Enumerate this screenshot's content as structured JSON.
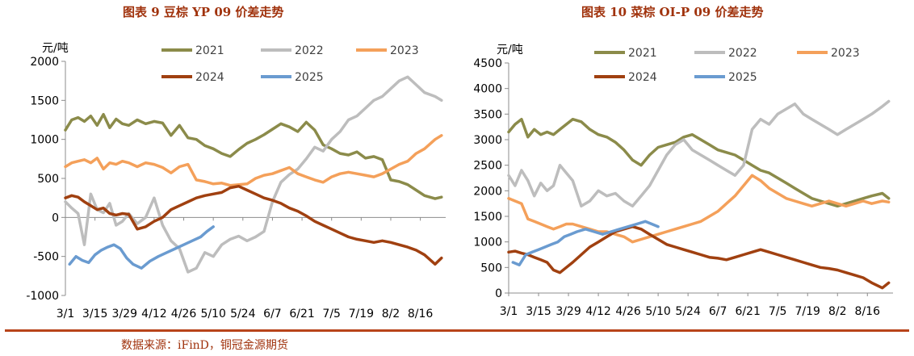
{
  "chart_data": [
    {
      "type": "line",
      "title": "图表 9 豆棕 YP 09 价差走势",
      "ylabel": "元/吨",
      "xlabel": "",
      "ylim": [
        -1000,
        2000
      ],
      "yticks": [
        -1000,
        -500,
        0,
        500,
        1000,
        1500,
        2000
      ],
      "ytick_labels": [
        "-1000",
        "-500",
        "0",
        "500",
        "1000",
        "1500",
        "2000"
      ],
      "xlim": [
        0,
        180
      ],
      "x_ticks": [
        0,
        14,
        28,
        42,
        56,
        70,
        84,
        98,
        112,
        126,
        140,
        154,
        168
      ],
      "x_tick_labels": [
        "3/1",
        "3/15",
        "3/29",
        "4/12",
        "4/26",
        "5/10",
        "5/24",
        "6/7",
        "6/21",
        "7/5",
        "7/19",
        "8/2",
        "8/16"
      ],
      "grid": false,
      "series": [
        {
          "name": "2021",
          "color": "#8b8b4a",
          "x": [
            0,
            3,
            6,
            9,
            12,
            15,
            18,
            21,
            24,
            27,
            30,
            34,
            38,
            42,
            46,
            50,
            54,
            58,
            62,
            66,
            70,
            74,
            78,
            82,
            86,
            90,
            94,
            98,
            102,
            106,
            110,
            114,
            118,
            122,
            126,
            130,
            134,
            138,
            142,
            146,
            150,
            154,
            158,
            162,
            166,
            170,
            175,
            178
          ],
          "values": [
            1120,
            1250,
            1280,
            1230,
            1300,
            1180,
            1320,
            1150,
            1260,
            1200,
            1180,
            1250,
            1200,
            1230,
            1210,
            1050,
            1180,
            1020,
            1000,
            920,
            880,
            820,
            780,
            870,
            950,
            1000,
            1060,
            1130,
            1200,
            1160,
            1100,
            1220,
            1120,
            930,
            880,
            820,
            800,
            840,
            760,
            780,
            740,
            480,
            460,
            420,
            350,
            280,
            240,
            260
          ]
        },
        {
          "name": "2022",
          "color": "#bdbdbd",
          "x": [
            0,
            3,
            6,
            9,
            12,
            15,
            18,
            21,
            24,
            27,
            30,
            34,
            38,
            42,
            46,
            50,
            54,
            58,
            62,
            66,
            70,
            74,
            78,
            82,
            86,
            90,
            94,
            98,
            102,
            106,
            110,
            114,
            118,
            122,
            126,
            130,
            134,
            138,
            142,
            146,
            150,
            154,
            158,
            162,
            166,
            170,
            175,
            178
          ],
          "values": [
            200,
            120,
            50,
            -350,
            300,
            100,
            60,
            180,
            -100,
            -50,
            50,
            -80,
            0,
            250,
            -100,
            -300,
            -400,
            -700,
            -650,
            -450,
            -500,
            -350,
            -280,
            -240,
            -300,
            -250,
            -180,
            200,
            450,
            550,
            620,
            750,
            900,
            850,
            1000,
            1100,
            1250,
            1300,
            1400,
            1500,
            1550,
            1650,
            1750,
            1800,
            1700,
            1600,
            1550,
            1500
          ]
        },
        {
          "name": "2023",
          "color": "#f4a05a",
          "x": [
            0,
            3,
            6,
            9,
            12,
            15,
            18,
            21,
            24,
            27,
            30,
            34,
            38,
            42,
            46,
            50,
            54,
            58,
            62,
            66,
            70,
            74,
            78,
            82,
            86,
            90,
            94,
            98,
            102,
            106,
            110,
            114,
            118,
            122,
            126,
            130,
            134,
            138,
            142,
            146,
            150,
            154,
            158,
            162,
            166,
            170,
            175,
            178
          ],
          "values": [
            650,
            700,
            720,
            740,
            700,
            760,
            620,
            700,
            680,
            720,
            700,
            650,
            700,
            680,
            640,
            570,
            650,
            680,
            480,
            460,
            430,
            440,
            410,
            420,
            430,
            500,
            540,
            560,
            600,
            640,
            560,
            520,
            480,
            450,
            520,
            560,
            580,
            560,
            540,
            520,
            560,
            620,
            680,
            720,
            820,
            880,
            1000,
            1050
          ]
        },
        {
          "name": "2024",
          "color": "#a04010",
          "x": [
            0,
            3,
            6,
            9,
            12,
            15,
            18,
            21,
            24,
            27,
            30,
            34,
            38,
            42,
            46,
            50,
            54,
            58,
            62,
            66,
            70,
            74,
            78,
            82,
            86,
            90,
            94,
            98,
            102,
            106,
            110,
            114,
            118,
            122,
            126,
            130,
            134,
            138,
            142,
            146,
            150,
            154,
            158,
            162,
            166,
            170,
            175,
            178
          ],
          "values": [
            250,
            280,
            260,
            200,
            150,
            100,
            120,
            50,
            30,
            50,
            40,
            -150,
            -120,
            -50,
            0,
            100,
            150,
            200,
            250,
            280,
            300,
            320,
            380,
            400,
            350,
            300,
            250,
            220,
            180,
            120,
            80,
            20,
            -50,
            -100,
            -150,
            -200,
            -250,
            -280,
            -300,
            -320,
            -300,
            -320,
            -350,
            -380,
            -420,
            -480,
            -600,
            -520
          ]
        },
        {
          "name": "2025",
          "color": "#6a9bd0",
          "x": [
            2,
            5,
            8,
            11,
            14,
            17,
            20,
            23,
            26,
            29,
            32,
            36,
            40,
            44,
            48,
            52,
            56,
            60,
            64,
            67,
            70
          ],
          "values": [
            -600,
            -500,
            -550,
            -580,
            -480,
            -420,
            -380,
            -350,
            -400,
            -520,
            -600,
            -650,
            -560,
            -500,
            -450,
            -400,
            -350,
            -300,
            -250,
            -180,
            -120
          ]
        }
      ]
    },
    {
      "type": "line",
      "title": "图表 10 菜棕 OI-P 09 价差走势",
      "ylabel": "元/吨",
      "xlabel": "",
      "ylim": [
        0,
        4500
      ],
      "yticks": [
        0,
        500,
        1000,
        1500,
        2000,
        2500,
        3000,
        3500,
        4000,
        4500
      ],
      "ytick_labels": [
        "0",
        "500",
        "1000",
        "1500",
        "2000",
        "2500",
        "3000",
        "3500",
        "4000",
        "4500"
      ],
      "xlim": [
        0,
        180
      ],
      "x_ticks": [
        0,
        14,
        28,
        42,
        56,
        70,
        84,
        98,
        112,
        126,
        140,
        154,
        168
      ],
      "x_tick_labels": [
        "3/1",
        "3/15",
        "3/29",
        "4/12",
        "4/26",
        "5/10",
        "5/24",
        "6/7",
        "6/21",
        "7/5",
        "7/19",
        "8/2",
        "8/16"
      ],
      "grid": false,
      "series": [
        {
          "name": "2021",
          "color": "#8b8b4a",
          "x": [
            0,
            3,
            6,
            9,
            12,
            15,
            18,
            21,
            24,
            27,
            30,
            34,
            38,
            42,
            46,
            50,
            54,
            58,
            62,
            66,
            70,
            74,
            78,
            82,
            86,
            90,
            94,
            98,
            102,
            106,
            110,
            114,
            118,
            122,
            126,
            130,
            134,
            138,
            142,
            146,
            150,
            154,
            158,
            162,
            166,
            170,
            175,
            178
          ],
          "values": [
            3150,
            3300,
            3400,
            3050,
            3200,
            3100,
            3150,
            3100,
            3200,
            3300,
            3400,
            3350,
            3200,
            3100,
            3050,
            2950,
            2800,
            2600,
            2500,
            2700,
            2850,
            2900,
            2950,
            3050,
            3100,
            3000,
            2900,
            2800,
            2750,
            2700,
            2600,
            2500,
            2400,
            2350,
            2250,
            2150,
            2050,
            1950,
            1850,
            1800,
            1750,
            1700,
            1750,
            1800,
            1850,
            1900,
            1950,
            1850
          ]
        },
        {
          "name": "2022",
          "color": "#bdbdbd",
          "x": [
            0,
            3,
            6,
            9,
            12,
            15,
            18,
            21,
            24,
            27,
            30,
            34,
            38,
            42,
            46,
            50,
            54,
            58,
            62,
            66,
            70,
            74,
            78,
            82,
            86,
            90,
            94,
            98,
            102,
            106,
            110,
            114,
            118,
            122,
            126,
            130,
            134,
            138,
            142,
            146,
            150,
            154,
            158,
            162,
            166,
            170,
            175,
            178
          ],
          "values": [
            2300,
            2100,
            2400,
            2200,
            1900,
            2150,
            2000,
            2100,
            2500,
            2350,
            2200,
            1700,
            1800,
            2000,
            1900,
            1950,
            1800,
            1700,
            1900,
            2100,
            2400,
            2700,
            2900,
            3000,
            2800,
            2700,
            2600,
            2500,
            2400,
            2300,
            2500,
            3200,
            3400,
            3300,
            3500,
            3600,
            3700,
            3500,
            3400,
            3300,
            3200,
            3100,
            3200,
            3300,
            3400,
            3500,
            3650,
            3750
          ]
        },
        {
          "name": "2023",
          "color": "#f4a05a",
          "x": [
            0,
            3,
            6,
            9,
            12,
            15,
            18,
            21,
            24,
            27,
            30,
            34,
            38,
            42,
            46,
            50,
            54,
            58,
            62,
            66,
            70,
            74,
            78,
            82,
            86,
            90,
            94,
            98,
            102,
            106,
            110,
            114,
            118,
            122,
            126,
            130,
            134,
            138,
            142,
            146,
            150,
            154,
            158,
            162,
            166,
            170,
            175,
            178
          ],
          "values": [
            1850,
            1800,
            1750,
            1450,
            1400,
            1350,
            1300,
            1250,
            1300,
            1350,
            1350,
            1300,
            1250,
            1200,
            1200,
            1150,
            1100,
            1000,
            1050,
            1100,
            1150,
            1200,
            1250,
            1300,
            1350,
            1400,
            1500,
            1600,
            1750,
            1900,
            2100,
            2300,
            2200,
            2050,
            1950,
            1850,
            1800,
            1750,
            1700,
            1750,
            1800,
            1750,
            1700,
            1750,
            1800,
            1750,
            1800,
            1780
          ]
        },
        {
          "name": "2024",
          "color": "#a04010",
          "x": [
            0,
            3,
            6,
            9,
            12,
            15,
            18,
            21,
            24,
            27,
            30,
            34,
            38,
            42,
            46,
            50,
            54,
            58,
            62,
            66,
            70,
            74,
            78,
            82,
            86,
            90,
            94,
            98,
            102,
            106,
            110,
            114,
            118,
            122,
            126,
            130,
            134,
            138,
            142,
            146,
            150,
            154,
            158,
            162,
            166,
            170,
            175,
            178
          ],
          "values": [
            800,
            820,
            780,
            750,
            700,
            650,
            600,
            450,
            400,
            500,
            600,
            750,
            900,
            1000,
            1100,
            1200,
            1250,
            1300,
            1250,
            1150,
            1050,
            950,
            900,
            850,
            800,
            750,
            700,
            680,
            650,
            700,
            750,
            800,
            850,
            800,
            750,
            700,
            650,
            600,
            550,
            500,
            480,
            450,
            400,
            350,
            300,
            200,
            100,
            200
          ]
        },
        {
          "name": "2025",
          "color": "#6a9bd0",
          "x": [
            2,
            5,
            8,
            11,
            14,
            17,
            20,
            23,
            26,
            29,
            32,
            36,
            40,
            44,
            48,
            52,
            56,
            60,
            64,
            67,
            70
          ],
          "values": [
            600,
            550,
            750,
            800,
            850,
            900,
            950,
            1000,
            1100,
            1150,
            1200,
            1250,
            1200,
            1150,
            1200,
            1250,
            1300,
            1350,
            1400,
            1350,
            1300
          ]
        }
      ]
    }
  ],
  "footer": {
    "source": "数据来源：iFinD，铜冠金源期货"
  }
}
